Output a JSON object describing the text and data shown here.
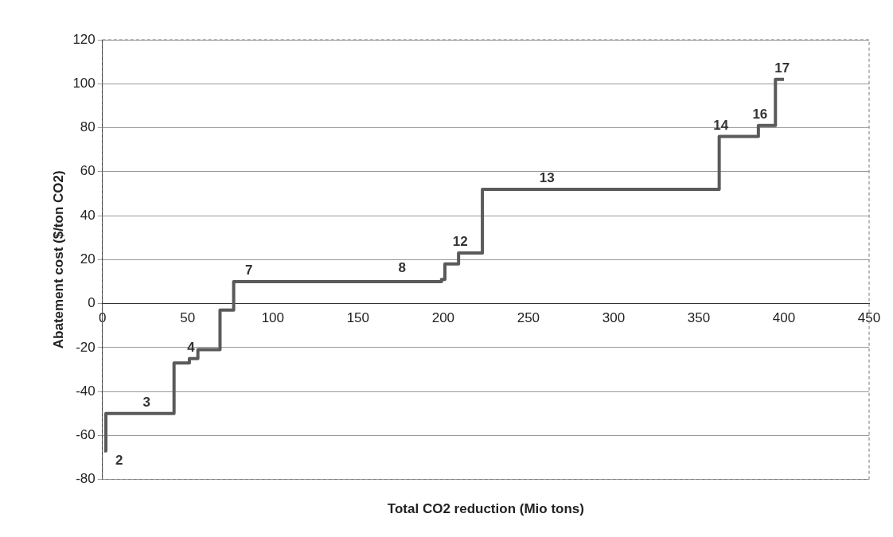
{
  "chart_data": {
    "type": "step",
    "xlabel": "Total CO2 reduction (Mio tons)",
    "ylabel": "Abatement cost ($/ton CO2)",
    "x": [
      1,
      2,
      42,
      51,
      56,
      69,
      77,
      199,
      201,
      209,
      223,
      362,
      385,
      395,
      400
    ],
    "values": [
      -67,
      -50,
      -27,
      -25,
      -21,
      -3,
      10,
      11,
      18,
      23,
      52,
      76,
      81,
      102,
      102
    ],
    "color": "#5a5a5a",
    "xlim": [
      0,
      450
    ],
    "xticks": [
      0,
      50,
      100,
      150,
      200,
      250,
      300,
      350,
      400,
      450
    ],
    "ylim": [
      -80,
      120
    ],
    "yticks": [
      -80,
      -60,
      -40,
      -20,
      0,
      20,
      40,
      60,
      80,
      100,
      120
    ],
    "grid": "y",
    "legend": false,
    "marker": "none",
    "line_style": "solid",
    "annotations": [
      {
        "text": "2",
        "x": 2,
        "y": -67
      },
      {
        "text": "3",
        "x": 25,
        "y": -50
      },
      {
        "text": "4",
        "x": 51,
        "y": -25
      },
      {
        "text": "7",
        "x": 85,
        "y": 10
      },
      {
        "text": "8",
        "x": 175,
        "y": 11
      },
      {
        "text": "12",
        "x": 209,
        "y": 23
      },
      {
        "text": "13",
        "x": 260,
        "y": 52
      },
      {
        "text": "14",
        "x": 362,
        "y": 76
      },
      {
        "text": "16",
        "x": 385,
        "y": 81
      },
      {
        "text": "17",
        "x": 398,
        "y": 102
      }
    ]
  }
}
